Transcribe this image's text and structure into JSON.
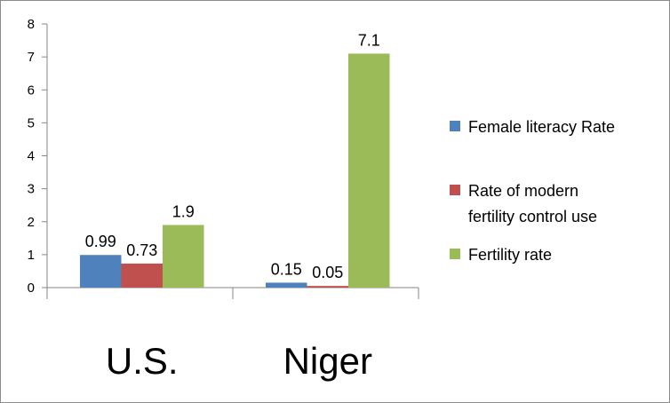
{
  "chart_data": {
    "type": "bar",
    "title": "",
    "xlabel": "",
    "ylabel": "",
    "categories": [
      "U.S.",
      "Niger"
    ],
    "series": [
      {
        "name": "Female literacy Rate",
        "color": "#4f81bd",
        "values": [
          0.99,
          0.15
        ],
        "labels": [
          "0.99",
          "0.15"
        ]
      },
      {
        "name": "Rate of modern fertility control use",
        "legend_lines": [
          "Rate of modern",
          "fertility control use"
        ],
        "color": "#c0504d",
        "values": [
          0.73,
          0.05
        ],
        "labels": [
          "0.73",
          "0.05"
        ]
      },
      {
        "name": "Fertility rate",
        "color": "#9bbb59",
        "values": [
          1.9,
          7.1
        ],
        "labels": [
          "1.9",
          "7.1"
        ]
      }
    ],
    "ylim": [
      0,
      8
    ],
    "yticks": [
      0,
      1,
      2,
      3,
      4,
      5,
      6,
      7,
      8
    ],
    "grid": false,
    "legend_position": "right"
  }
}
